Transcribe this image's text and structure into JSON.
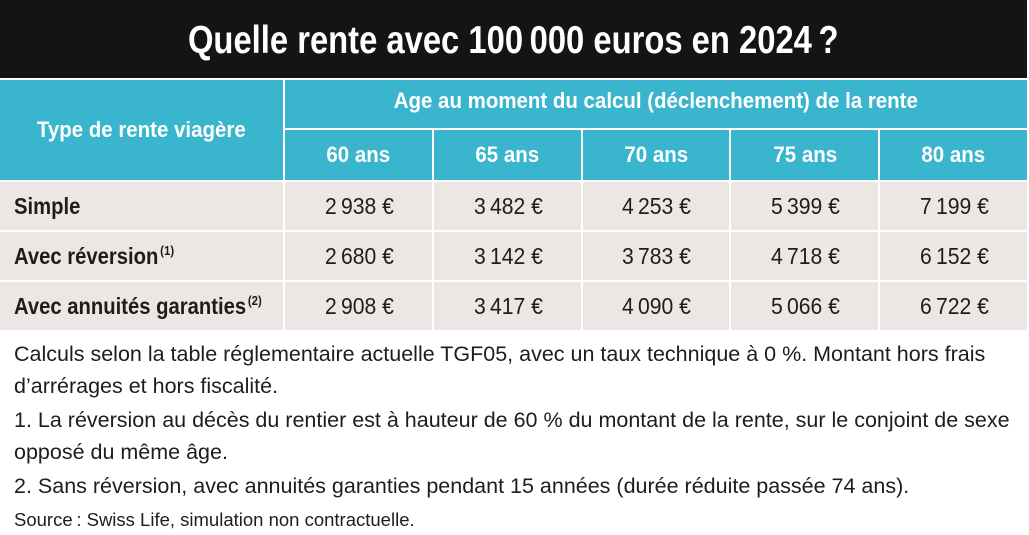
{
  "colors": {
    "title_bg": "#141414",
    "title_text": "#ffffff",
    "header_bg": "#3ab5ce",
    "header_text": "#ffffff",
    "row_bg": "#ece7e4",
    "body_text": "#1d1d1b"
  },
  "chart_data": {
    "type": "table",
    "title": "Quelle rente avec 100 000 euros en 2024 ?",
    "row_header": "Type de rente viagère",
    "column_group": "Age au moment du calcul (déclenchement) de la rente",
    "columns": [
      "60 ans",
      "65 ans",
      "70 ans",
      "75 ans",
      "80 ans"
    ],
    "unit": "€",
    "rows": [
      {
        "label": "Simple",
        "values": [
          2938,
          3482,
          4253,
          5399,
          7199
        ]
      },
      {
        "label": "Avec réversion",
        "note": "(1)",
        "values": [
          2680,
          3142,
          3783,
          4718,
          6152
        ]
      },
      {
        "label": "Avec annuités garanties",
        "note": "(2)",
        "values": [
          2908,
          3417,
          4090,
          5066,
          6722
        ]
      }
    ]
  },
  "footer": {
    "method": "Calculs selon la table réglementaire actuelle TGF05, avec un taux technique à 0 %. Montant hors frais d’arrérages et hors fiscalité.",
    "notes": [
      "1. La réversion au décès du rentier est à hauteur de 60 % du montant de la rente, sur le conjoint de sexe opposé du même âge.",
      "2. Sans réversion, avec annuités garanties pendant 15 années (durée réduite passée 74 ans)."
    ],
    "source": "Source : Swiss Life, simulation non contractuelle."
  }
}
